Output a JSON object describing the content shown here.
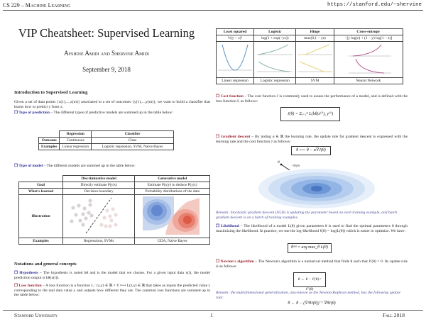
{
  "header": {
    "course": "CS 229 – Machine Learning",
    "url": "https://stanford.edu/~shervine"
  },
  "title": "VIP Cheatsheet: Supervised Learning",
  "authors": "Afshine Amidi and Shervine Amidi",
  "date": "September 9, 2018",
  "intro": {
    "heading": "Introduction to Supervised Learning",
    "paragraph": "Given a set of data points {x(1),...,x(m)} associated to a set of outcomes {y(1),...,y(m)}, we want to build a classifier that learns how to predict y from x.",
    "prediction_term": "❐ Type of prediction",
    "prediction_text": " – The different types of predictive models are summed up in the table below:",
    "prediction_table": {
      "headers": [
        "",
        "Regression",
        "Classifier"
      ],
      "rows": [
        [
          "Outcome",
          "Continuous",
          "Class"
        ],
        [
          "Examples",
          "Linear regression",
          "Logistic regression, SVM, Naive Bayes"
        ]
      ]
    },
    "model_term": "❐ Type of model",
    "model_text": " – The different models are summed up in the table below:",
    "model_table": {
      "headers": [
        "",
        "Discriminative model",
        "Generative model"
      ],
      "rows": [
        [
          "Goal",
          "Directly estimate P(y|x)",
          "Estimate P(x|y) to deduce P(y|x)"
        ],
        [
          "What's learned",
          "Decision boundary",
          "Probability distributions of the data"
        ],
        [
          "Illustration",
          "",
          ""
        ],
        [
          "Examples",
          "Regressions, SVMs",
          "GDA, Naive Bayes"
        ]
      ]
    }
  },
  "notations": {
    "heading": "Notations and general concepts",
    "hypothesis_term": "❐ Hypothesis",
    "hypothesis_text": " – The hypothesis is noted hθ and is the model that we choose. For a given input data x(i), the model prediction output is hθ(x(i)).",
    "loss_term": "❐ Loss function",
    "loss_text": " – A loss function is a function L : (z,y) ∈ ℝ × Y ⟼ L(z,y) ∈ ℝ that takes as inputs the predicted value z corresponding to the real data value y and outputs how different they are. The common loss functions are summed up in the table below:"
  },
  "loss_table": {
    "headers": [
      "Least squared",
      "Logistic",
      "Hinge",
      "Cross-entropy"
    ],
    "formulas": [
      "½(y − z)²",
      "log(1 + exp(−yz))",
      "max(0,1 − yz)",
      "−[y log(z) + (1 − y) log(1 − z)]"
    ],
    "models": [
      "Linear regression",
      "Logistic regression",
      "SVM",
      "Neural Network"
    ],
    "colors": [
      "#5a8fc0",
      "#7fb0a0",
      "#e8d27a",
      "#b0508a"
    ]
  },
  "cost": {
    "term": "❐ Cost function",
    "text": " – The cost function J is commonly used to assess the performance of a model, and is defined with the loss function L as follows:",
    "formula": "J(θ) = Σᵢ₌₁ᵐ L(hθ(x⁽ⁱ⁾), y⁽ⁱ⁾)"
  },
  "gradient": {
    "term": "❐ Gradient descent",
    "text": " – By noting α ∈ ℝ the learning rate, the update rule for gradient descent is expressed with the learning rate and the cost function J as follows:",
    "formula": "θ ⟵ θ − α∇J(θ)",
    "label_theta": "θ",
    "label_grad": "−∇J(θ)"
  },
  "remark_sgd": "Remark: Stochastic gradient descent (SGD) is updating the parameter based on each training example, and batch gradient descent is on a batch of training examples.",
  "likelihood": {
    "term": "❐ Likelihood",
    "text": " – The likelihood of a model L(θ) given parameters θ is used to find the optimal parameters θ through maximizing the likelihood. In practice, we use the log-likelihood ℓ(θ) = log(L(θ)) which is easier to optimize. We have:",
    "formula": "θᵒᵖᵗ = arg max_θ L(θ)"
  },
  "newton": {
    "term": "❐ Newton's algorithm",
    "text": " – The Newton's algorithm is a numerical method that finds θ such that ℓ′(θ) = 0. Its update rule is as follows:",
    "formula": "θ ← θ − ℓ′(θ) / ℓ″(θ)"
  },
  "remark_newton": "Remark: the multidimensional generalization, also known as the Newton-Raphson method, has the following update rule:",
  "newton_multi": "θ ← θ − (∇²θℓ(θ))⁻¹ ∇θℓ(θ)",
  "footer": {
    "left": "Stanford University",
    "page": "1",
    "right": "Fall 2018"
  }
}
